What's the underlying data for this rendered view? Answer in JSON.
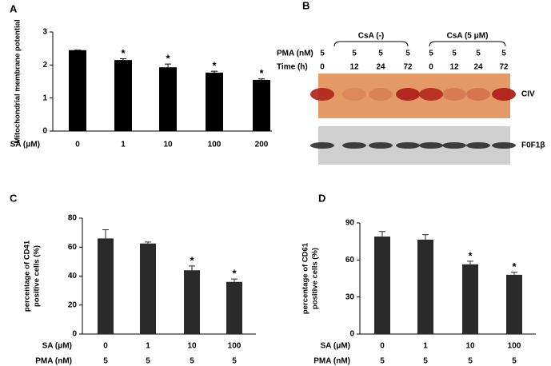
{
  "chart_data": [
    {
      "type": "bar",
      "panel": "A",
      "ylabel": [
        "Mitochondrial membrane potential"
      ],
      "xlabel": "SA (μM)",
      "categories": [
        "0",
        "1",
        "10",
        "100",
        "200"
      ],
      "values": [
        2.45,
        2.15,
        1.93,
        1.77,
        1.55
      ],
      "errors": [
        0,
        0.04,
        0.1,
        0.04,
        0.03
      ],
      "markers": [
        null,
        "*",
        "*",
        "*",
        "*"
      ],
      "color": "#000000",
      "ylim": [
        0,
        3
      ],
      "yticks": [
        0,
        1,
        2,
        3
      ]
    },
    {
      "type": "blot",
      "panel": "B",
      "groups": [
        "CsA (-)",
        "CsA (5 μM)"
      ],
      "rows": [
        {
          "label": "PMA (nM)",
          "values": [
            5,
            5,
            5,
            5,
            5,
            5,
            5,
            5
          ]
        },
        {
          "label": "Time (h)",
          "values": [
            0,
            12,
            24,
            72,
            0,
            12,
            24,
            72
          ]
        }
      ],
      "blots": [
        "CIV",
        "F0F1β"
      ]
    },
    {
      "type": "bar",
      "panel": "C",
      "ylabel": [
        "percentage of CD41",
        "positive cells (%)"
      ],
      "xlabel": "SA (μM)",
      "categories": [
        "0",
        "1",
        "10",
        "100"
      ],
      "values": [
        66,
        62.5,
        44,
        36
      ],
      "errors": [
        6,
        1,
        3,
        2
      ],
      "markers": [
        null,
        null,
        "*",
        "*"
      ],
      "color": "#2a2a2a",
      "extra_rows": [
        {
          "label": "PMA (nM)",
          "values": [
            5,
            5,
            5,
            5
          ]
        }
      ],
      "ylim": [
        0,
        80
      ],
      "yticks": [
        0,
        20,
        40,
        60,
        80
      ]
    },
    {
      "type": "bar",
      "panel": "D",
      "ylabel": [
        "percentage of CD61",
        "positive cells (%)"
      ],
      "xlabel": "SA (μM)",
      "categories": [
        "0",
        "1",
        "10",
        "100"
      ],
      "values": [
        79,
        76.5,
        56.5,
        48
      ],
      "errors": [
        4,
        4,
        2.5,
        2
      ],
      "markers": [
        null,
        null,
        "*",
        "*"
      ],
      "color": "#2a2a2a",
      "extra_rows": [
        {
          "label": "PMA (nM)",
          "values": [
            5,
            5,
            5,
            5
          ]
        }
      ],
      "ylim": [
        0,
        90
      ],
      "yticks": [
        0,
        30,
        60,
        90
      ]
    }
  ]
}
